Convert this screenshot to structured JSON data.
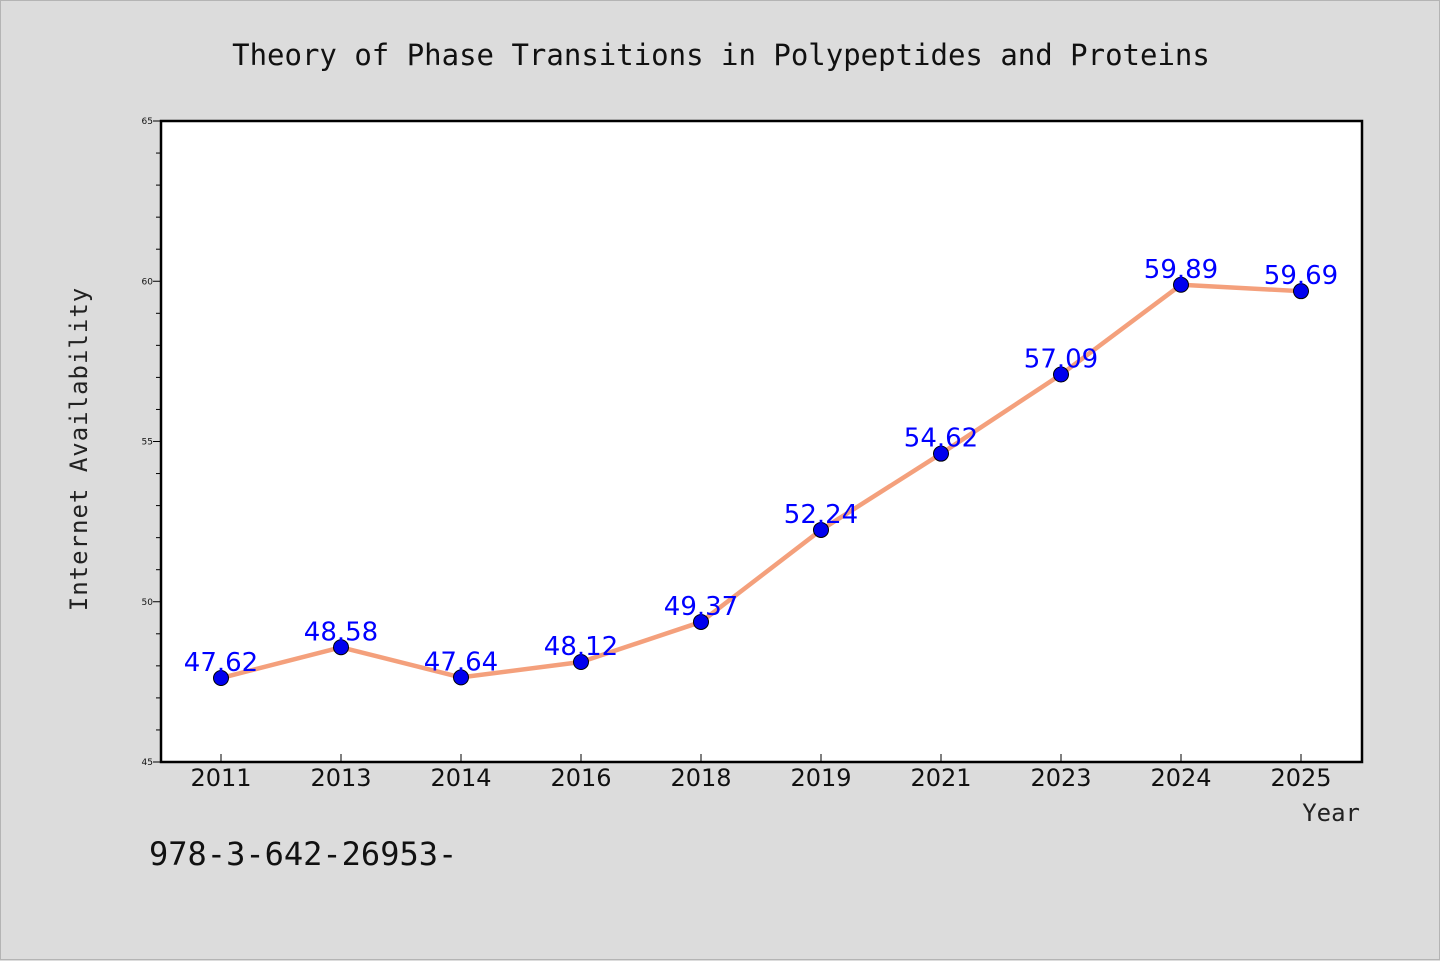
{
  "colors": {
    "background": "#dcdcdc",
    "plot_background": "#ffffff",
    "line": "#f4a07c",
    "marker": "#0000ee",
    "data_label": "#0000ff"
  },
  "footnote": "978-3-642-26953-",
  "chart_data": {
    "type": "line",
    "title": "Theory of Phase Transitions in Polypeptides and Proteins",
    "xlabel": "Year",
    "ylabel": "Internet Availability",
    "categories": [
      "2011",
      "2013",
      "2014",
      "2016",
      "2018",
      "2019",
      "2021",
      "2023",
      "2024",
      "2025"
    ],
    "series": [
      {
        "values": [
          47.62,
          48.58,
          47.64,
          48.12,
          49.37,
          52.24,
          54.62,
          57.09,
          59.89,
          59.69
        ],
        "labels": [
          "47.62",
          "48.58",
          "47.64",
          "48.12",
          "49.37",
          "52.24",
          "54.62",
          "57.09",
          "59.89",
          "59.69"
        ]
      }
    ],
    "ylim": [
      45,
      65
    ],
    "yticks": [
      45,
      50,
      55,
      60,
      65
    ],
    "ytick_labels": [
      "45",
      "50",
      "55",
      "60",
      "65"
    ],
    "grid": false,
    "legend": "none"
  }
}
